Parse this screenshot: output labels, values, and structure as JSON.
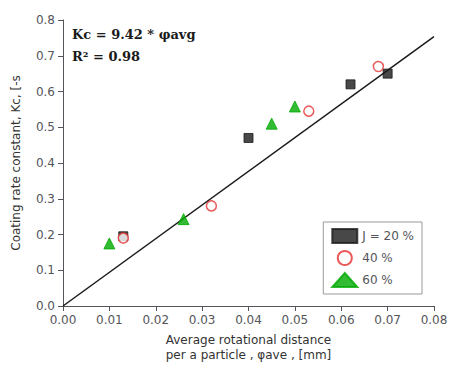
{
  "chart_data": {
    "type": "scatter",
    "xlabel": "Average rotational distance\nper a particle , φave , [mm]",
    "ylabel": "Coating rate constant, Kc, [-s",
    "xlim": [
      0.0,
      0.08
    ],
    "ylim": [
      0.0,
      0.8
    ],
    "xticks": [
      {
        "value": 0.0,
        "label": "0.00"
      },
      0.01,
      0.02,
      0.03,
      0.04,
      0.05,
      0.06,
      0.07,
      0.08
    ],
    "yticks": [
      {
        "value": 0.0,
        "label": "0.0"
      },
      0.1,
      0.2,
      0.3,
      0.4,
      0.5,
      0.6,
      0.7,
      0.8
    ],
    "grid": false,
    "legend": "lower right",
    "annotations": [
      "Kc = 9.42 * φavg",
      "R² = 0.98"
    ],
    "series": [
      {
        "type": "line",
        "color": "#1a1a1a",
        "x": [
          0.0,
          0.08
        ],
        "values": [
          0.0,
          0.7536
        ]
      },
      {
        "name": "J = 20 %",
        "color": "#1a1a1a",
        "marker": "square",
        "x": [
          0.013,
          0.04,
          0.062,
          0.07
        ],
        "values": [
          0.195,
          0.47,
          0.62,
          0.65
        ]
      },
      {
        "name": "40 %",
        "color": "#e63030",
        "marker": "open_circle",
        "x": [
          0.013,
          0.032,
          0.053,
          0.068
        ],
        "values": [
          0.19,
          0.28,
          0.545,
          0.67
        ]
      },
      {
        "name": "60 %",
        "color": "#00aa00",
        "marker": "triangle",
        "x": [
          0.01,
          0.026,
          0.045,
          0.05
        ],
        "values": [
          0.175,
          0.243,
          0.51,
          0.558
        ]
      }
    ]
  }
}
